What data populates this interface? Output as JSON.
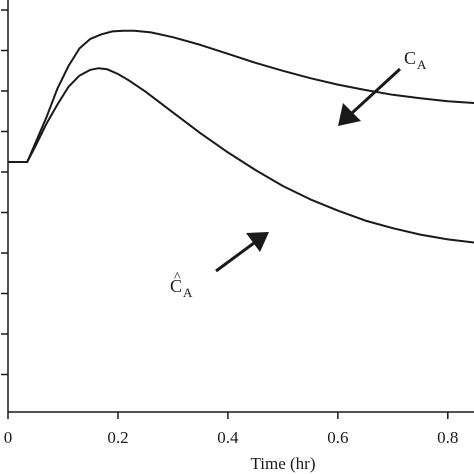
{
  "chart_data": {
    "type": "line",
    "title": "",
    "xlabel": "Time (hr)",
    "ylabel": "",
    "xlim": [
      0,
      0.85
    ],
    "x_ticks": [
      0,
      0.2,
      0.4,
      0.6,
      0.8
    ],
    "x_tick_labels": [
      "0",
      "0.2",
      "0.4",
      "0.6",
      "0.8"
    ],
    "y_tick_count": 10,
    "grid": false,
    "legend": "none",
    "line_color": "#1a1a1a",
    "series": [
      {
        "label_main": "C",
        "label_sub": "A",
        "points": [
          [
            0,
            0
          ],
          [
            0.035,
            0
          ],
          [
            0.05,
            0.06
          ],
          [
            0.07,
            0.14
          ],
          [
            0.09,
            0.23
          ],
          [
            0.11,
            0.3
          ],
          [
            0.13,
            0.355
          ],
          [
            0.15,
            0.385
          ],
          [
            0.17,
            0.399
          ],
          [
            0.19,
            0.408
          ],
          [
            0.21,
            0.41
          ],
          [
            0.23,
            0.41
          ],
          [
            0.26,
            0.405
          ],
          [
            0.3,
            0.39
          ],
          [
            0.35,
            0.366
          ],
          [
            0.4,
            0.338
          ],
          [
            0.45,
            0.31
          ],
          [
            0.5,
            0.285
          ],
          [
            0.55,
            0.262
          ],
          [
            0.6,
            0.242
          ],
          [
            0.65,
            0.225
          ],
          [
            0.7,
            0.21
          ],
          [
            0.75,
            0.199
          ],
          [
            0.8,
            0.19
          ],
          [
            0.85,
            0.184
          ]
        ]
      },
      {
        "label_main": "C",
        "label_accent": "^",
        "label_sub": "A",
        "points": [
          [
            0,
            0
          ],
          [
            0.035,
            0
          ],
          [
            0.05,
            0.05
          ],
          [
            0.07,
            0.12
          ],
          [
            0.09,
            0.18
          ],
          [
            0.11,
            0.235
          ],
          [
            0.13,
            0.27
          ],
          [
            0.15,
            0.288
          ],
          [
            0.165,
            0.293
          ],
          [
            0.18,
            0.29
          ],
          [
            0.2,
            0.275
          ],
          [
            0.22,
            0.255
          ],
          [
            0.25,
            0.22
          ],
          [
            0.3,
            0.155
          ],
          [
            0.35,
            0.09
          ],
          [
            0.4,
            0.03
          ],
          [
            0.45,
            -0.025
          ],
          [
            0.5,
            -0.075
          ],
          [
            0.55,
            -0.117
          ],
          [
            0.6,
            -0.152
          ],
          [
            0.65,
            -0.183
          ],
          [
            0.7,
            -0.207
          ],
          [
            0.75,
            -0.227
          ],
          [
            0.8,
            -0.242
          ],
          [
            0.85,
            -0.252
          ]
        ]
      }
    ]
  }
}
